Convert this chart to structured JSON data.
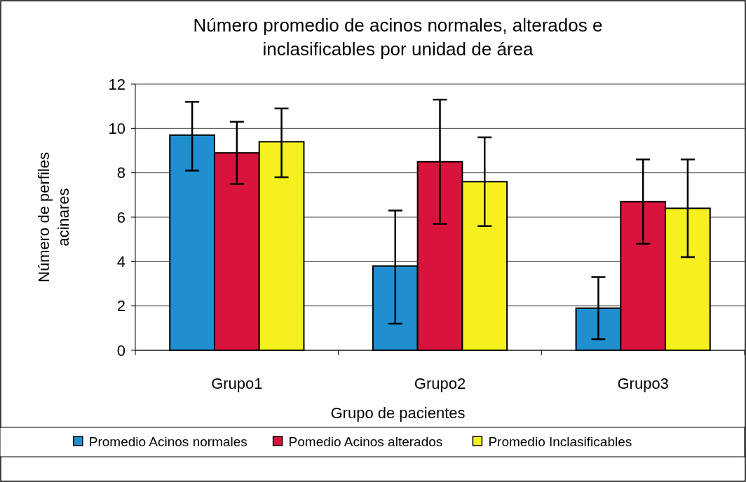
{
  "chart_data": {
    "type": "bar",
    "title": "Número promedio  de acinos normales, alterados e inclasificables por unidad de área",
    "xlabel": "Grupo de pacientes",
    "ylabel": "Número de perfiles acinares",
    "categories": [
      "Grupo1",
      "Grupo2",
      "Grupo3"
    ],
    "series": [
      {
        "name": "Promedio Acinos normales",
        "color": "#1f8fcf",
        "values": [
          9.7,
          3.8,
          1.9
        ],
        "errors": [
          [
            8.1,
            11.2
          ],
          [
            1.2,
            6.3
          ],
          [
            0.5,
            3.3
          ]
        ]
      },
      {
        "name": "Pomedio Acinos alterados",
        "color": "#d8143c",
        "values": [
          8.9,
          8.5,
          6.7
        ],
        "errors": [
          [
            7.5,
            10.3
          ],
          [
            5.7,
            11.3
          ],
          [
            4.8,
            8.6
          ]
        ]
      },
      {
        "name": "Promedio Inclasificables",
        "color": "#f5f01e",
        "values": [
          9.4,
          7.6,
          6.4
        ],
        "errors": [
          [
            7.8,
            10.9
          ],
          [
            5.6,
            9.6
          ],
          [
            4.2,
            8.6
          ]
        ]
      }
    ],
    "ylim": [
      0,
      12
    ],
    "yticks": [
      0,
      2,
      4,
      6,
      8,
      10,
      12
    ],
    "grid": "y",
    "legend": "bottom"
  }
}
